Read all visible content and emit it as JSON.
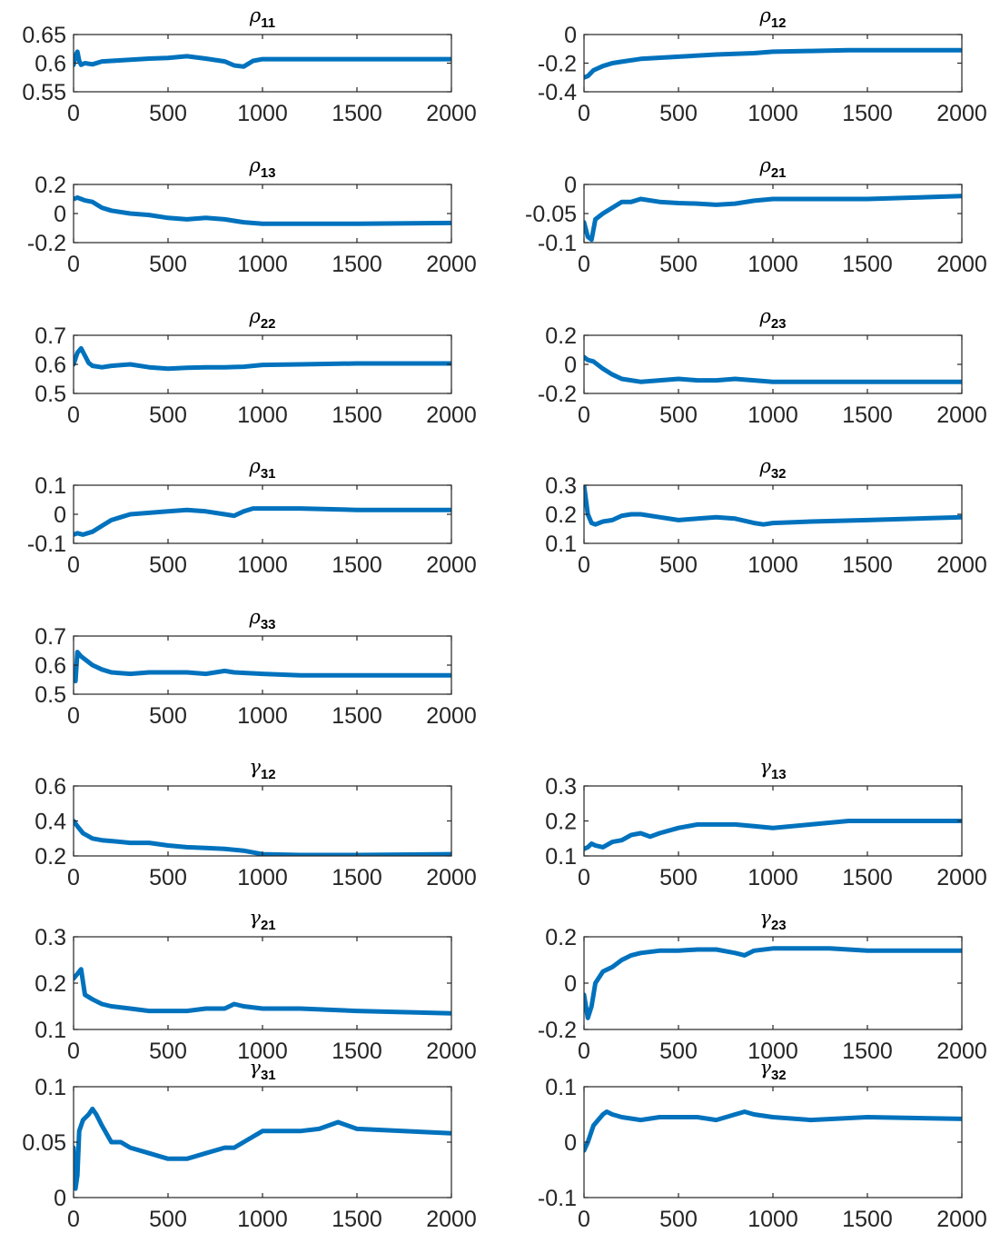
{
  "style": {
    "line_color": "#0072BD",
    "axis_color": "#262626",
    "background": "#ffffff"
  },
  "chart_data": [
    {
      "type": "line",
      "title_symbol": "ρ",
      "title_sub": "11",
      "xlim": [
        0,
        2000
      ],
      "ylim": [
        0.55,
        0.65
      ],
      "xticks": [
        "0",
        "500",
        "1000",
        "1500",
        "2000"
      ],
      "yticks": [
        "0.55",
        "0.6",
        "0.65"
      ],
      "ytick_values": [
        0.55,
        0.6,
        0.65
      ],
      "series": [
        {
          "x": [
            0,
            10,
            20,
            30,
            40,
            60,
            100,
            150,
            200,
            250,
            300,
            400,
            500,
            600,
            700,
            800,
            850,
            900,
            950,
            1000,
            1200,
            1500,
            1800,
            2000
          ],
          "y": [
            0.597,
            0.613,
            0.62,
            0.604,
            0.597,
            0.6,
            0.598,
            0.603,
            0.604,
            0.605,
            0.606,
            0.608,
            0.609,
            0.612,
            0.608,
            0.603,
            0.596,
            0.594,
            0.604,
            0.607,
            0.607,
            0.607,
            0.607,
            0.607
          ]
        }
      ]
    },
    {
      "type": "line",
      "title_symbol": "ρ",
      "title_sub": "12",
      "xlim": [
        0,
        2000
      ],
      "ylim": [
        -0.4,
        0
      ],
      "xticks": [
        "0",
        "500",
        "1000",
        "1500",
        "2000"
      ],
      "yticks": [
        "-0.4",
        "-0.2",
        "0"
      ],
      "ytick_values": [
        -0.4,
        -0.2,
        0
      ],
      "series": [
        {
          "x": [
            0,
            20,
            50,
            100,
            150,
            200,
            300,
            500,
            700,
            900,
            1000,
            1200,
            1400,
            1600,
            2000
          ],
          "y": [
            -0.3,
            -0.29,
            -0.25,
            -0.22,
            -0.2,
            -0.19,
            -0.17,
            -0.155,
            -0.14,
            -0.13,
            -0.12,
            -0.115,
            -0.11,
            -0.11,
            -0.11
          ]
        }
      ]
    },
    {
      "type": "line",
      "title_symbol": "ρ",
      "title_sub": "13",
      "xlim": [
        0,
        2000
      ],
      "ylim": [
        -0.2,
        0.2
      ],
      "xticks": [
        "0",
        "500",
        "1000",
        "1500",
        "2000"
      ],
      "yticks": [
        "-0.2",
        "0",
        "0.2"
      ],
      "ytick_values": [
        -0.2,
        0,
        0.2
      ],
      "series": [
        {
          "x": [
            0,
            20,
            40,
            60,
            100,
            150,
            200,
            300,
            400,
            500,
            600,
            700,
            800,
            900,
            1000,
            1200,
            1500,
            2000
          ],
          "y": [
            0.1,
            0.11,
            0.1,
            0.09,
            0.08,
            0.04,
            0.02,
            0.0,
            -0.01,
            -0.03,
            -0.04,
            -0.03,
            -0.04,
            -0.06,
            -0.07,
            -0.07,
            -0.07,
            -0.065
          ]
        }
      ]
    },
    {
      "type": "line",
      "title_symbol": "ρ",
      "title_sub": "21",
      "xlim": [
        0,
        2000
      ],
      "ylim": [
        -0.1,
        0
      ],
      "xticks": [
        "0",
        "500",
        "1000",
        "1500",
        "2000"
      ],
      "yticks": [
        "-0.1",
        "-0.05",
        "0"
      ],
      "ytick_values": [
        -0.1,
        -0.05,
        0
      ],
      "series": [
        {
          "x": [
            0,
            20,
            40,
            60,
            100,
            150,
            200,
            250,
            300,
            400,
            500,
            600,
            700,
            800,
            900,
            1000,
            1200,
            1500,
            2000
          ],
          "y": [
            -0.065,
            -0.09,
            -0.095,
            -0.06,
            -0.05,
            -0.04,
            -0.03,
            -0.03,
            -0.025,
            -0.03,
            -0.032,
            -0.033,
            -0.035,
            -0.033,
            -0.028,
            -0.025,
            -0.025,
            -0.025,
            -0.02
          ]
        }
      ]
    },
    {
      "type": "line",
      "title_symbol": "ρ",
      "title_sub": "22",
      "xlim": [
        0,
        2000
      ],
      "ylim": [
        0.5,
        0.7
      ],
      "xticks": [
        "0",
        "500",
        "1000",
        "1500",
        "2000"
      ],
      "yticks": [
        "0.5",
        "0.6",
        "0.7"
      ],
      "ytick_values": [
        0.5,
        0.6,
        0.7
      ],
      "series": [
        {
          "x": [
            0,
            20,
            40,
            60,
            80,
            100,
            150,
            200,
            300,
            400,
            500,
            600,
            700,
            800,
            900,
            1000,
            1200,
            1500,
            2000
          ],
          "y": [
            0.6,
            0.64,
            0.655,
            0.63,
            0.605,
            0.595,
            0.59,
            0.595,
            0.6,
            0.59,
            0.585,
            0.588,
            0.59,
            0.59,
            0.592,
            0.598,
            0.6,
            0.603,
            0.603
          ]
        }
      ]
    },
    {
      "type": "line",
      "title_symbol": "ρ",
      "title_sub": "23",
      "xlim": [
        0,
        2000
      ],
      "ylim": [
        -0.2,
        0.2
      ],
      "xticks": [
        "0",
        "500",
        "1000",
        "1500",
        "2000"
      ],
      "yticks": [
        "-0.2",
        "0",
        "0.2"
      ],
      "ytick_values": [
        -0.2,
        0,
        0.2
      ],
      "series": [
        {
          "x": [
            0,
            20,
            50,
            100,
            150,
            200,
            300,
            400,
            500,
            600,
            700,
            800,
            900,
            1000,
            1200,
            1500,
            2000
          ],
          "y": [
            0.05,
            0.03,
            0.02,
            -0.03,
            -0.07,
            -0.1,
            -0.12,
            -0.11,
            -0.1,
            -0.11,
            -0.11,
            -0.1,
            -0.11,
            -0.12,
            -0.12,
            -0.12,
            -0.12
          ]
        }
      ]
    },
    {
      "type": "line",
      "title_symbol": "ρ",
      "title_sub": "31",
      "xlim": [
        0,
        2000
      ],
      "ylim": [
        -0.1,
        0.1
      ],
      "xticks": [
        "0",
        "500",
        "1000",
        "1500",
        "2000"
      ],
      "yticks": [
        "-0.1",
        "0",
        "0.1"
      ],
      "ytick_values": [
        -0.1,
        0,
        0.1
      ],
      "series": [
        {
          "x": [
            0,
            20,
            50,
            100,
            150,
            200,
            250,
            300,
            400,
            500,
            600,
            700,
            800,
            850,
            900,
            950,
            1000,
            1200,
            1500,
            2000
          ],
          "y": [
            -0.07,
            -0.065,
            -0.07,
            -0.06,
            -0.04,
            -0.02,
            -0.01,
            0.0,
            0.005,
            0.01,
            0.015,
            0.01,
            0.0,
            -0.005,
            0.01,
            0.02,
            0.02,
            0.02,
            0.015,
            0.015
          ]
        }
      ]
    },
    {
      "type": "line",
      "title_symbol": "ρ",
      "title_sub": "32",
      "xlim": [
        0,
        2000
      ],
      "ylim": [
        0.1,
        0.3
      ],
      "xticks": [
        "0",
        "500",
        "1000",
        "1500",
        "2000"
      ],
      "yticks": [
        "0.1",
        "0.2",
        "0.3"
      ],
      "ytick_values": [
        0.1,
        0.2,
        0.3
      ],
      "series": [
        {
          "x": [
            0,
            20,
            40,
            60,
            100,
            150,
            200,
            250,
            300,
            400,
            500,
            600,
            700,
            800,
            900,
            950,
            1000,
            1200,
            1500,
            2000
          ],
          "y": [
            0.3,
            0.2,
            0.17,
            0.165,
            0.175,
            0.18,
            0.195,
            0.2,
            0.2,
            0.19,
            0.18,
            0.185,
            0.19,
            0.185,
            0.17,
            0.165,
            0.17,
            0.175,
            0.18,
            0.19
          ]
        }
      ]
    },
    {
      "type": "line",
      "title_symbol": "ρ",
      "title_sub": "33",
      "xlim": [
        0,
        2000
      ],
      "ylim": [
        0.5,
        0.7
      ],
      "xticks": [
        "0",
        "500",
        "1000",
        "1500",
        "2000"
      ],
      "yticks": [
        "0.5",
        "0.6",
        "0.7"
      ],
      "ytick_values": [
        0.5,
        0.6,
        0.7
      ],
      "series": [
        {
          "x": [
            0,
            10,
            20,
            40,
            60,
            100,
            150,
            200,
            300,
            400,
            500,
            600,
            700,
            800,
            850,
            1000,
            1200,
            1500,
            2000
          ],
          "y": [
            0.55,
            0.545,
            0.645,
            0.63,
            0.62,
            0.6,
            0.585,
            0.575,
            0.57,
            0.575,
            0.575,
            0.575,
            0.57,
            0.58,
            0.575,
            0.57,
            0.565,
            0.565,
            0.565
          ]
        }
      ]
    },
    {
      "type": "line",
      "title_symbol": "γ",
      "title_sub": "12",
      "xlim": [
        0,
        2000
      ],
      "ylim": [
        0.2,
        0.6
      ],
      "xticks": [
        "0",
        "500",
        "1000",
        "1500",
        "2000"
      ],
      "yticks": [
        "0.2",
        "0.4",
        "0.6"
      ],
      "ytick_values": [
        0.2,
        0.4,
        0.6
      ],
      "series": [
        {
          "x": [
            0,
            20,
            50,
            100,
            150,
            200,
            300,
            400,
            500,
            600,
            700,
            800,
            900,
            1000,
            1200,
            1500,
            2000
          ],
          "y": [
            0.4,
            0.37,
            0.33,
            0.3,
            0.29,
            0.285,
            0.275,
            0.275,
            0.26,
            0.25,
            0.245,
            0.24,
            0.23,
            0.21,
            0.205,
            0.205,
            0.21
          ]
        }
      ]
    },
    {
      "type": "line",
      "title_symbol": "γ",
      "title_sub": "13",
      "xlim": [
        0,
        2000
      ],
      "ylim": [
        0.1,
        0.3
      ],
      "xticks": [
        "0",
        "500",
        "1000",
        "1500",
        "2000"
      ],
      "yticks": [
        "0.1",
        "0.2",
        "0.3"
      ],
      "ytick_values": [
        0.1,
        0.2,
        0.3
      ],
      "series": [
        {
          "x": [
            0,
            20,
            40,
            60,
            100,
            150,
            200,
            250,
            300,
            350,
            400,
            500,
            600,
            700,
            800,
            900,
            1000,
            1200,
            1400,
            1600,
            2000
          ],
          "y": [
            0.12,
            0.125,
            0.135,
            0.13,
            0.125,
            0.14,
            0.145,
            0.16,
            0.165,
            0.155,
            0.165,
            0.18,
            0.19,
            0.19,
            0.19,
            0.185,
            0.18,
            0.19,
            0.2,
            0.2,
            0.2
          ]
        }
      ]
    },
    {
      "type": "line",
      "title_symbol": "γ",
      "title_sub": "21",
      "xlim": [
        0,
        2000
      ],
      "ylim": [
        0.1,
        0.3
      ],
      "xticks": [
        "0",
        "500",
        "1000",
        "1500",
        "2000"
      ],
      "yticks": [
        "0.1",
        "0.2",
        "0.3"
      ],
      "ytick_values": [
        0.1,
        0.2,
        0.3
      ],
      "series": [
        {
          "x": [
            0,
            20,
            40,
            60,
            100,
            150,
            200,
            300,
            400,
            500,
            600,
            700,
            800,
            850,
            900,
            1000,
            1200,
            1500,
            2000
          ],
          "y": [
            0.21,
            0.22,
            0.23,
            0.175,
            0.165,
            0.155,
            0.15,
            0.145,
            0.14,
            0.14,
            0.14,
            0.145,
            0.145,
            0.155,
            0.15,
            0.145,
            0.145,
            0.14,
            0.135
          ]
        }
      ]
    },
    {
      "type": "line",
      "title_symbol": "γ",
      "title_sub": "23",
      "xlim": [
        0,
        2000
      ],
      "ylim": [
        -0.2,
        0.2
      ],
      "xticks": [
        "0",
        "500",
        "1000",
        "1500",
        "2000"
      ],
      "yticks": [
        "-0.2",
        "0",
        "0.2"
      ],
      "ytick_values": [
        -0.2,
        0,
        0.2
      ],
      "series": [
        {
          "x": [
            0,
            20,
            40,
            60,
            100,
            150,
            200,
            250,
            300,
            400,
            500,
            600,
            700,
            800,
            850,
            900,
            1000,
            1200,
            1300,
            1500,
            2000
          ],
          "y": [
            -0.05,
            -0.15,
            -0.1,
            0.0,
            0.05,
            0.07,
            0.1,
            0.12,
            0.13,
            0.14,
            0.14,
            0.145,
            0.145,
            0.13,
            0.12,
            0.14,
            0.15,
            0.15,
            0.15,
            0.14,
            0.14
          ]
        }
      ]
    },
    {
      "type": "line",
      "title_symbol": "γ",
      "title_sub": "31",
      "xlim": [
        0,
        2000
      ],
      "ylim": [
        0,
        0.1
      ],
      "xticks": [
        "0",
        "500",
        "1000",
        "1500",
        "2000"
      ],
      "yticks": [
        "0",
        "0.05",
        "0.1"
      ],
      "ytick_values": [
        0,
        0.05,
        0.1
      ],
      "series": [
        {
          "x": [
            0,
            10,
            20,
            30,
            50,
            80,
            100,
            120,
            150,
            200,
            250,
            300,
            400,
            500,
            600,
            700,
            800,
            850,
            900,
            1000,
            1200,
            1300,
            1400,
            1500,
            2000
          ],
          "y": [
            0.045,
            0.008,
            0.02,
            0.06,
            0.07,
            0.075,
            0.08,
            0.075,
            0.065,
            0.05,
            0.05,
            0.045,
            0.04,
            0.035,
            0.035,
            0.04,
            0.045,
            0.045,
            0.05,
            0.06,
            0.06,
            0.062,
            0.068,
            0.062,
            0.058
          ]
        }
      ]
    },
    {
      "type": "line",
      "title_symbol": "γ",
      "title_sub": "32",
      "xlim": [
        0,
        2000
      ],
      "ylim": [
        -0.1,
        0.1
      ],
      "xticks": [
        "0",
        "500",
        "1000",
        "1500",
        "2000"
      ],
      "yticks": [
        "-0.1",
        "0",
        "0.1"
      ],
      "ytick_values": [
        -0.1,
        0,
        0.1
      ],
      "series": [
        {
          "x": [
            0,
            20,
            50,
            100,
            120,
            150,
            200,
            300,
            400,
            500,
            600,
            700,
            800,
            850,
            900,
            1000,
            1200,
            1500,
            2000
          ],
          "y": [
            -0.015,
            0.0,
            0.03,
            0.05,
            0.055,
            0.05,
            0.045,
            0.04,
            0.045,
            0.045,
            0.045,
            0.04,
            0.05,
            0.055,
            0.05,
            0.045,
            0.04,
            0.045,
            0.042
          ]
        }
      ]
    }
  ]
}
